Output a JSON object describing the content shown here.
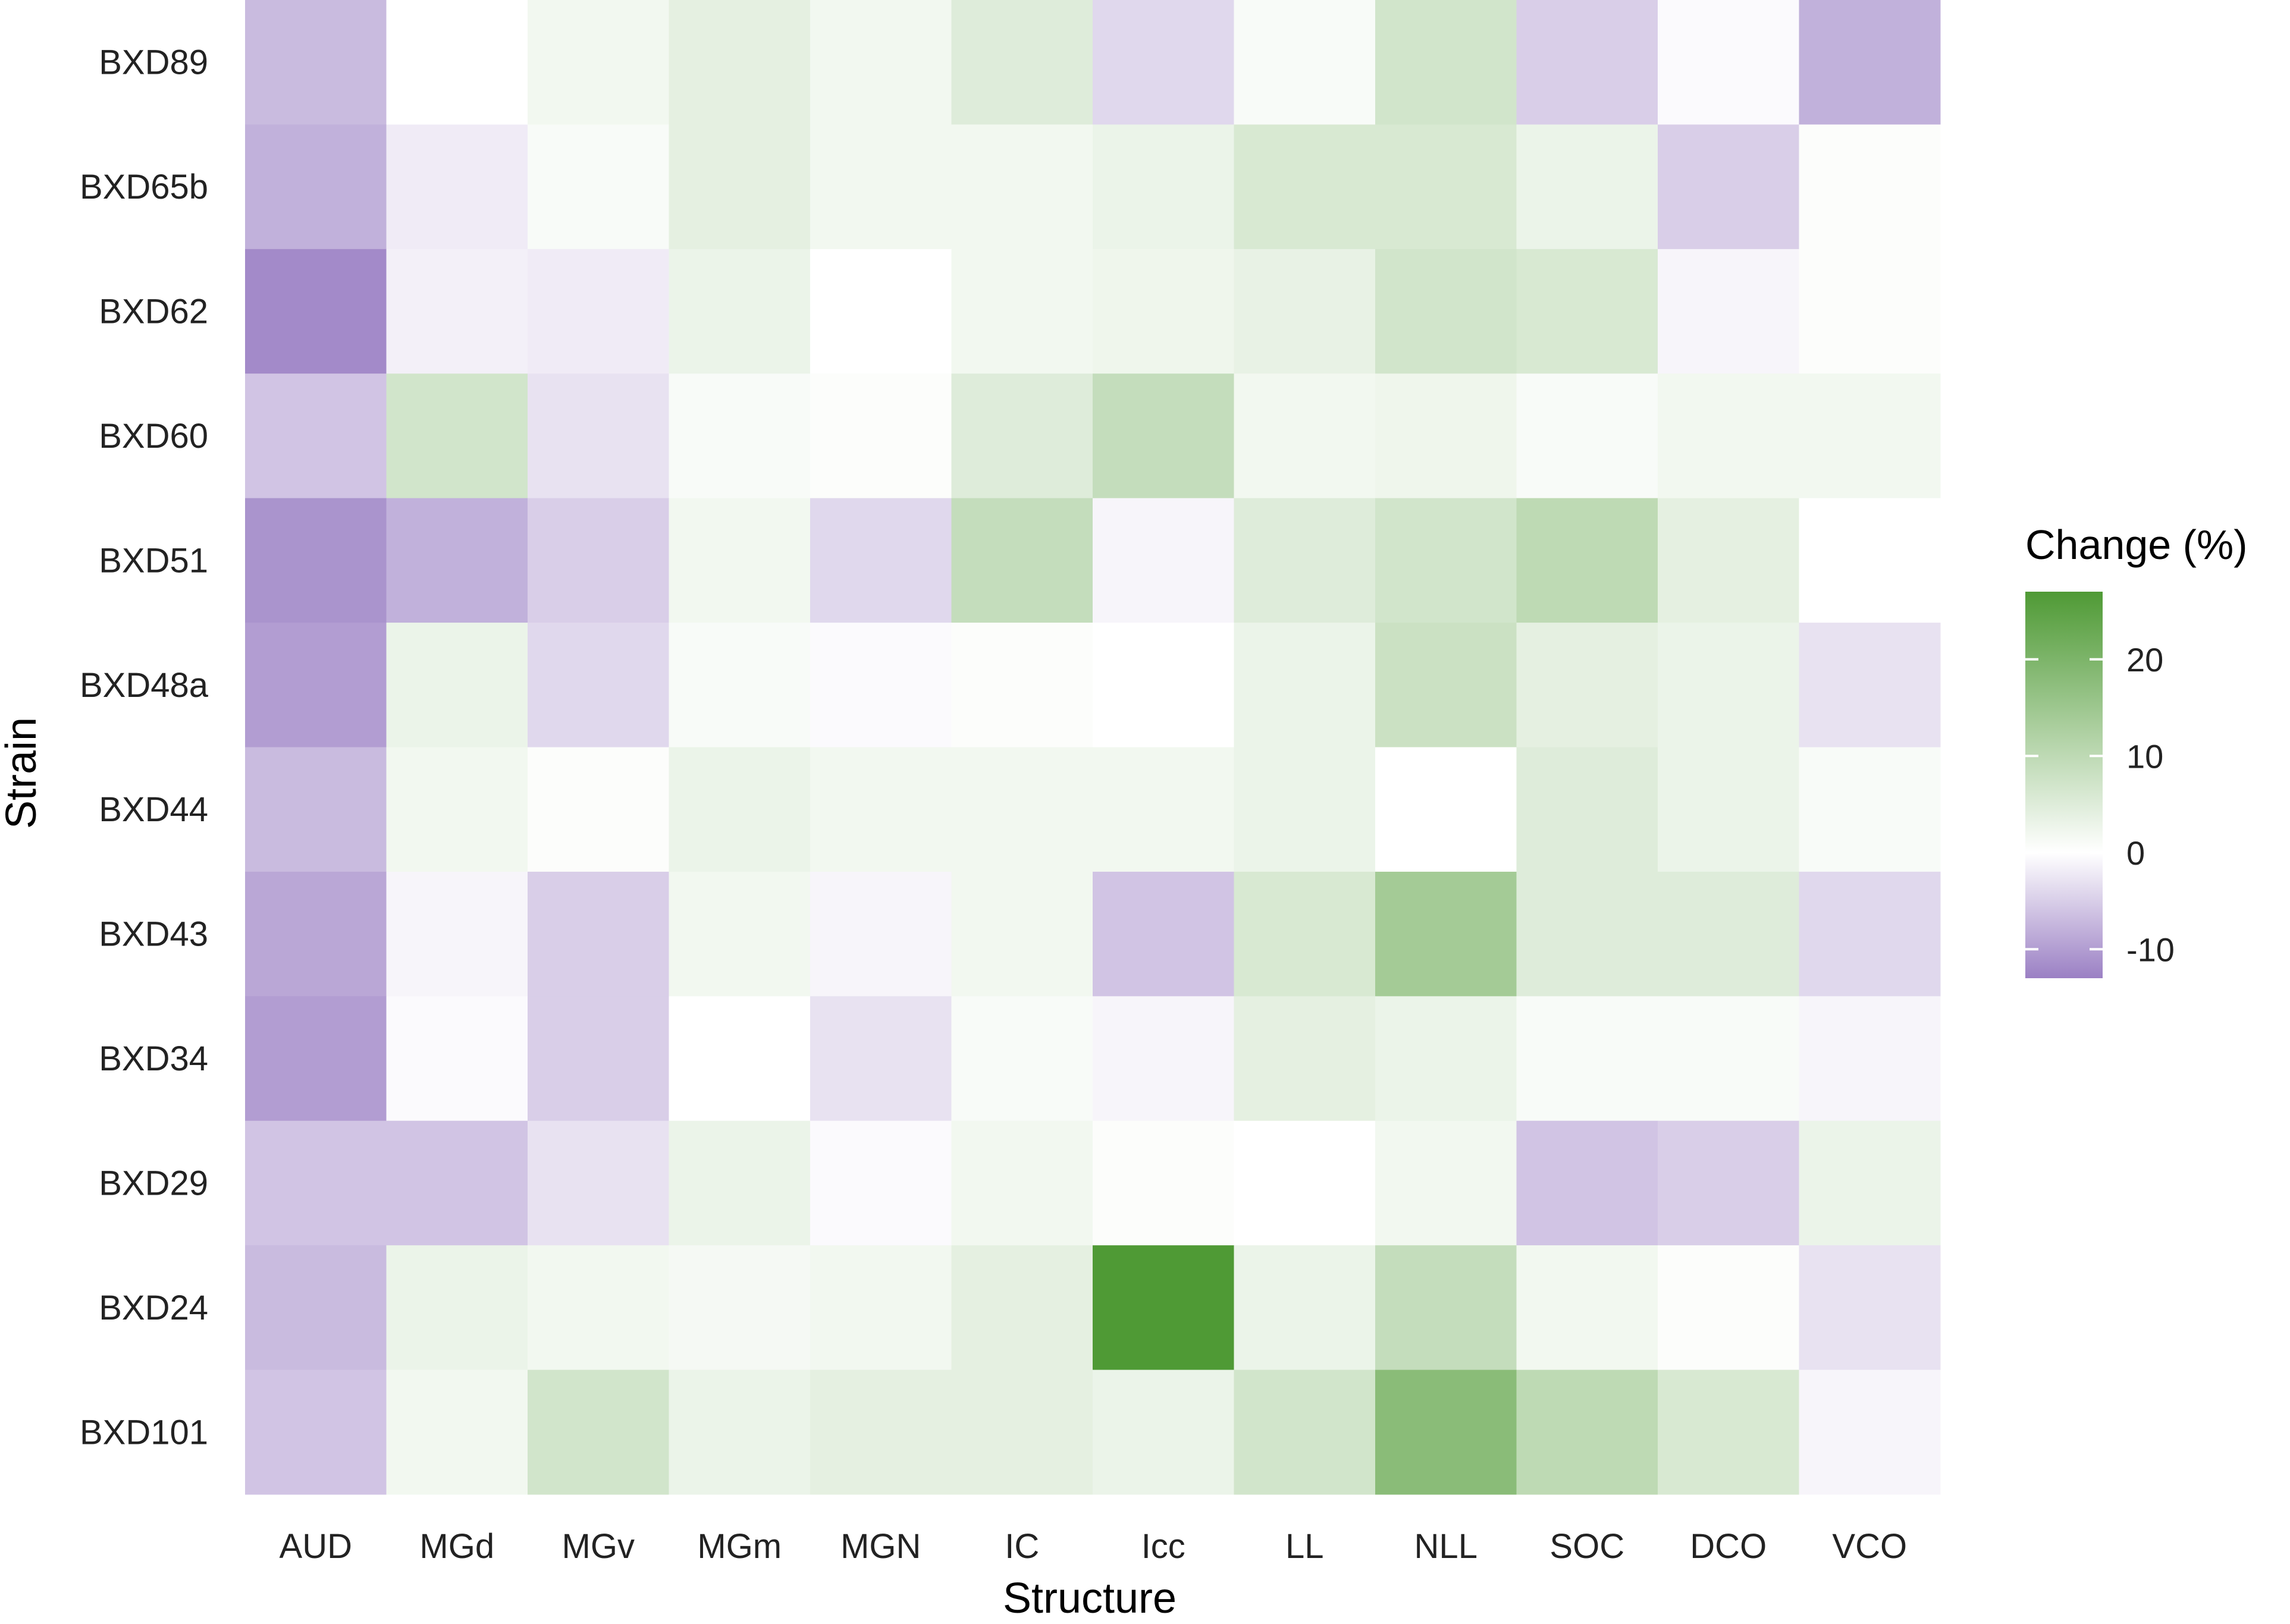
{
  "chart_data": {
    "type": "heatmap",
    "title": "",
    "xlabel": "Structure",
    "ylabel": "Strain",
    "x_categories": [
      "AUD",
      "MGd",
      "MGv",
      "MGm",
      "MGN",
      "IC",
      "Icc",
      "LL",
      "NLL",
      "SOC",
      "DCO",
      "VCO"
    ],
    "y_categories": [
      "BXD89",
      "BXD65b",
      "BXD62",
      "BXD60",
      "BXD51",
      "BXD48a",
      "BXD44",
      "BXD43",
      "BXD34",
      "BXD29",
      "BXD24",
      "BXD101"
    ],
    "values": [
      [
        -7,
        0,
        2,
        4,
        2,
        5,
        -4,
        1,
        7,
        -5,
        -0.5,
        -8
      ],
      [
        -8,
        -2,
        1,
        4,
        2,
        2,
        3,
        6,
        6,
        3,
        -5,
        0.5
      ],
      [
        -12,
        -1.5,
        -2,
        3,
        0,
        2,
        2.5,
        3.5,
        7,
        6,
        -1,
        0.5
      ],
      [
        -6,
        7,
        -3,
        1,
        0.5,
        5,
        9,
        2,
        2.5,
        1,
        2,
        2
      ],
      [
        -11,
        -8,
        -5,
        2,
        -4,
        9,
        -1,
        5,
        7,
        10,
        4,
        0
      ],
      [
        -10,
        3,
        -4,
        1,
        -0.5,
        0.5,
        0,
        3,
        8,
        4,
        3,
        -3
      ],
      [
        -7,
        2,
        0.5,
        3,
        2,
        2,
        2,
        3,
        0,
        5,
        3,
        1
      ],
      [
        -9,
        -1,
        -5,
        2,
        -1,
        2,
        -6,
        6,
        14,
        5,
        5,
        -4
      ],
      [
        -10,
        -0.5,
        -5,
        0,
        -3,
        1,
        -1,
        4,
        3,
        1,
        1,
        -1
      ],
      [
        -6,
        -6,
        -3,
        3,
        -0.5,
        2,
        0.5,
        0,
        2,
        -6,
        -5,
        3
      ],
      [
        -7,
        3,
        2,
        1.5,
        2,
        4,
        27,
        3,
        9,
        2,
        0.5,
        -3
      ],
      [
        -6,
        2,
        7,
        3,
        4,
        4,
        3,
        7,
        18,
        10,
        6,
        -1
      ]
    ],
    "legend": {
      "title": "Change (%)",
      "ticks": [
        20,
        10,
        0,
        -10
      ],
      "range": [
        -13,
        27
      ],
      "colors": {
        "low": "#9b80c4",
        "mid": "#ffffff",
        "high": "#4f9a35"
      },
      "placement": "right"
    },
    "grid": false
  }
}
